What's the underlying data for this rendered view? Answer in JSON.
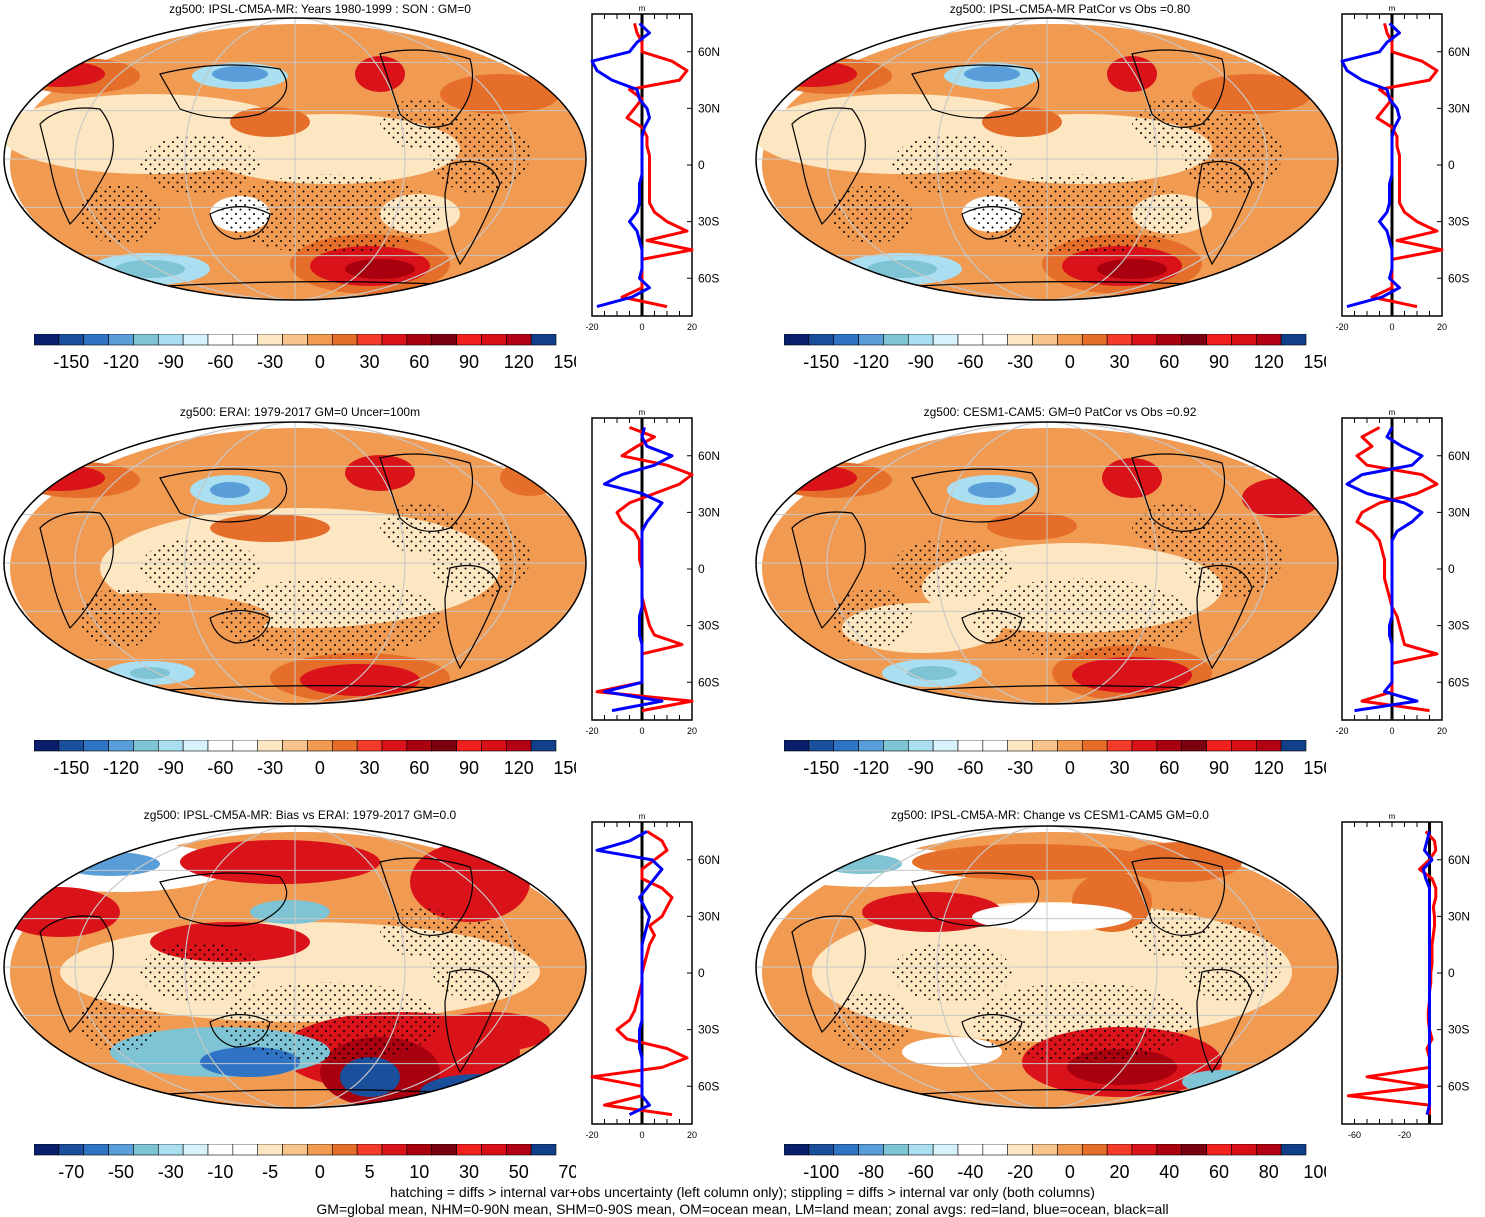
{
  "colors": {
    "land": "#ff0000",
    "ocean": "#0000ff",
    "all": "#000000",
    "palette": [
      "#0a1f6b",
      "#1a4f9c",
      "#2f74c4",
      "#5a9ed9",
      "#7fc4d4",
      "#a9dff0",
      "#d7f2fa",
      "#ffffff",
      "#ffffff",
      "#fde7c2",
      "#f8c48d",
      "#f09a52",
      "#e56f2a",
      "#f53b2a",
      "#d91319",
      "#a8000f",
      "#7a0010",
      "#f0211f",
      "#d80f17",
      "#b20015",
      "#123f8a"
    ]
  },
  "panels": [
    {
      "id": "ipsl-climatology",
      "title": "zg500: IPSL-CM5A-MR: Years 1980-1999 : SON : GM=0",
      "colorbar_labels": [
        "-150",
        "-120",
        "-90",
        "-60",
        "-30",
        "0",
        "30",
        "60",
        "90",
        "120",
        "150"
      ],
      "profile_lat_labels": [
        "60N",
        "30N",
        "0",
        "30S",
        "60S"
      ],
      "profile_x_labels": [
        "-20",
        "0",
        "20"
      ],
      "profile_unit": "m"
    },
    {
      "id": "ipsl-patcor",
      "title": "zg500: IPSL-CM5A-MR PatCor vs Obs =0.80",
      "colorbar_labels": [
        "-150",
        "-120",
        "-90",
        "-60",
        "-30",
        "0",
        "30",
        "60",
        "90",
        "120",
        "150"
      ],
      "profile_lat_labels": [
        "60N",
        "30N",
        "0",
        "30S",
        "60S"
      ],
      "profile_x_labels": [
        "-20",
        "0",
        "20"
      ],
      "profile_unit": "m"
    },
    {
      "id": "erai-obs",
      "title": "zg500: ERAI: 1979-2017 GM=0 Uncer=100m",
      "colorbar_labels": [
        "-150",
        "-120",
        "-90",
        "-60",
        "-30",
        "0",
        "30",
        "60",
        "90",
        "120",
        "150"
      ],
      "profile_lat_labels": [
        "60N",
        "30N",
        "0",
        "30S",
        "60S"
      ],
      "profile_x_labels": [
        "-20",
        "0",
        "20"
      ],
      "profile_unit": "m"
    },
    {
      "id": "cesm-patcor",
      "title": "zg500: CESM1-CAM5: GM=0 PatCor vs Obs =0.92",
      "colorbar_labels": [
        "-150",
        "-120",
        "-90",
        "-60",
        "-30",
        "0",
        "30",
        "60",
        "90",
        "120",
        "150"
      ],
      "profile_lat_labels": [
        "60N",
        "30N",
        "0",
        "30S",
        "60S"
      ],
      "profile_x_labels": [
        "-20",
        "0",
        "20"
      ],
      "profile_unit": "m"
    },
    {
      "id": "ipsl-bias",
      "title": "zg500: IPSL-CM5A-MR: Bias vs ERAI: 1979-2017  GM=0.0",
      "colorbar_labels": [
        "-70",
        "-50",
        "-30",
        "-10",
        "-5",
        "0",
        "5",
        "10",
        "30",
        "50",
        "70"
      ],
      "profile_lat_labels": [
        "60N",
        "30N",
        "0",
        "30S",
        "60S"
      ],
      "profile_x_labels": [
        "-20",
        "0",
        "20"
      ],
      "profile_unit": "m"
    },
    {
      "id": "ipsl-change",
      "title": "zg500: IPSL-CM5A-MR: Change vs CESM1-CAM5 GM=0.0",
      "colorbar_labels": [
        "-100",
        "-80",
        "-60",
        "-40",
        "-20",
        "0",
        "20",
        "40",
        "60",
        "80",
        "100"
      ],
      "profile_lat_labels": [
        "60N",
        "30N",
        "0",
        "30S",
        "60S"
      ],
      "profile_x_labels": [
        "-60",
        "-20"
      ],
      "profile_unit": "m"
    }
  ],
  "chart_data": [
    {
      "type": "line",
      "title": "zg500: IPSL-CM5A-MR: Years 1980-1999 : SON : GM=0",
      "description_axis": "zonal average vs latitude",
      "xlim": [
        -20,
        20
      ],
      "ylim": [
        -80,
        80
      ],
      "x_unit": "m",
      "series": [
        {
          "name": "red=land",
          "lat": [
            -75,
            -70,
            -65,
            -60,
            -55,
            -50,
            -45,
            -40,
            -35,
            -30,
            -25,
            -20,
            -15,
            -10,
            -5,
            0,
            5,
            10,
            15,
            20,
            25,
            30,
            35,
            40,
            45,
            50,
            55,
            60,
            65,
            70,
            75
          ],
          "values": [
            10,
            -8,
            0,
            0,
            0,
            0,
            20,
            2,
            18,
            10,
            5,
            3,
            3,
            3,
            3,
            3,
            3,
            2,
            2,
            0,
            -6,
            -3,
            0,
            -5,
            15,
            18,
            12,
            0,
            0,
            -2,
            -3
          ]
        },
        {
          "name": "blue=ocean",
          "lat": [
            -75,
            -70,
            -65,
            -60,
            -55,
            -50,
            -45,
            -40,
            -35,
            -30,
            -25,
            -20,
            -15,
            -10,
            -5,
            0,
            5,
            10,
            15,
            20,
            25,
            30,
            35,
            40,
            45,
            50,
            55,
            60,
            65,
            70,
            75
          ],
          "values": [
            -18,
            -4,
            3,
            -1,
            0,
            0,
            0,
            -1,
            -2,
            -5,
            -2,
            -1,
            -1,
            -1,
            0,
            0,
            0,
            0,
            0,
            1,
            3,
            2,
            -1,
            -2,
            -12,
            -18,
            -20,
            -5,
            -2,
            3,
            -1
          ]
        }
      ]
    },
    {
      "type": "line",
      "title": "zg500: IPSL-CM5A-MR PatCor vs Obs =0.80",
      "xlim": [
        -20,
        20
      ],
      "ylim": [
        -80,
        80
      ],
      "x_unit": "m",
      "series": [
        {
          "name": "red=land",
          "lat": [
            -75,
            -70,
            -65,
            -60,
            -55,
            -50,
            -45,
            -40,
            -35,
            -30,
            -25,
            -20,
            -15,
            -10,
            -5,
            0,
            5,
            10,
            15,
            20,
            25,
            30,
            35,
            40,
            45,
            50,
            55,
            60,
            65,
            70,
            75
          ],
          "values": [
            10,
            -8,
            0,
            0,
            0,
            0,
            20,
            2,
            18,
            10,
            5,
            3,
            3,
            3,
            3,
            3,
            3,
            2,
            2,
            0,
            -6,
            -3,
            0,
            -5,
            15,
            18,
            12,
            0,
            0,
            -2,
            -3
          ]
        },
        {
          "name": "blue=ocean",
          "lat": [
            -75,
            -70,
            -65,
            -60,
            -55,
            -50,
            -45,
            -40,
            -35,
            -30,
            -25,
            -20,
            -15,
            -10,
            -5,
            0,
            5,
            10,
            15,
            20,
            25,
            30,
            35,
            40,
            45,
            50,
            55,
            60,
            65,
            70,
            75
          ],
          "values": [
            -18,
            -4,
            3,
            -1,
            0,
            0,
            0,
            -1,
            -2,
            -5,
            -2,
            -1,
            -1,
            -1,
            0,
            0,
            0,
            0,
            0,
            1,
            3,
            2,
            -1,
            -2,
            -12,
            -18,
            -20,
            -5,
            -2,
            3,
            -1
          ]
        }
      ]
    },
    {
      "type": "line",
      "title": "zg500: ERAI: 1979-2017 GM=0 Uncer=100m",
      "xlim": [
        -20,
        20
      ],
      "ylim": [
        -80,
        80
      ],
      "x_unit": "m",
      "series": [
        {
          "name": "red=land",
          "lat": [
            -75,
            -70,
            -65,
            -60,
            -55,
            -50,
            -45,
            -40,
            -35,
            -30,
            -25,
            -20,
            -15,
            -10,
            -5,
            0,
            5,
            10,
            15,
            20,
            25,
            30,
            35,
            40,
            45,
            50,
            55,
            60,
            65,
            70,
            75
          ],
          "values": [
            0,
            20,
            -18,
            0,
            0,
            0,
            0,
            16,
            5,
            3,
            2,
            1,
            0,
            0,
            0,
            0,
            -1,
            -1,
            -1,
            -3,
            -8,
            -10,
            -5,
            5,
            15,
            20,
            10,
            -8,
            -2,
            5,
            -5
          ]
        },
        {
          "name": "blue=ocean",
          "lat": [
            -75,
            -70,
            -65,
            -60,
            -55,
            -50,
            -45,
            -40,
            -35,
            -30,
            -25,
            -20,
            -15,
            -10,
            -5,
            0,
            5,
            10,
            15,
            20,
            25,
            30,
            35,
            40,
            45,
            50,
            55,
            60,
            65,
            70,
            75
          ],
          "values": [
            -12,
            8,
            -15,
            0,
            0,
            0,
            0,
            0,
            -1,
            -1,
            -1,
            0,
            0,
            0,
            0,
            0,
            0,
            0,
            0,
            0,
            2,
            5,
            8,
            0,
            -15,
            -8,
            5,
            12,
            2,
            0,
            1
          ]
        }
      ]
    },
    {
      "type": "line",
      "title": "zg500: CESM1-CAM5: GM=0 PatCor vs Obs =0.92",
      "xlim": [
        -20,
        20
      ],
      "ylim": [
        -80,
        80
      ],
      "x_unit": "m",
      "series": [
        {
          "name": "red=land",
          "lat": [
            -75,
            -70,
            -65,
            -60,
            -55,
            -50,
            -45,
            -40,
            -35,
            -30,
            -25,
            -20,
            -15,
            -10,
            -5,
            0,
            5,
            10,
            15,
            20,
            25,
            30,
            35,
            40,
            45,
            50,
            55,
            60,
            65,
            70,
            75
          ],
          "values": [
            15,
            -12,
            0,
            0,
            0,
            0,
            18,
            5,
            4,
            3,
            2,
            0,
            -1,
            -2,
            -3,
            -3,
            -3,
            -4,
            -5,
            -8,
            -14,
            -12,
            -5,
            10,
            18,
            12,
            -10,
            -14,
            -8,
            -12,
            -5
          ]
        },
        {
          "name": "blue=ocean",
          "lat": [
            -75,
            -70,
            -65,
            -60,
            -55,
            -50,
            -45,
            -40,
            -35,
            -30,
            -25,
            -20,
            -15,
            -10,
            -5,
            0,
            5,
            10,
            15,
            20,
            25,
            30,
            35,
            40,
            45,
            50,
            55,
            60,
            65,
            70,
            75
          ],
          "values": [
            -15,
            10,
            -3,
            0,
            0,
            0,
            0,
            0,
            -1,
            -1,
            0,
            0,
            0,
            0,
            0,
            0,
            0,
            0,
            0,
            2,
            8,
            12,
            5,
            -10,
            -18,
            -12,
            8,
            12,
            4,
            -2,
            0
          ]
        }
      ]
    },
    {
      "type": "line",
      "title": "zg500: IPSL-CM5A-MR: Bias vs ERAI: 1979-2017  GM=0.0",
      "xlim": [
        -20,
        20
      ],
      "ylim": [
        -80,
        80
      ],
      "x_unit": "m",
      "series": [
        {
          "name": "red=land",
          "lat": [
            -75,
            -70,
            -65,
            -60,
            -55,
            -50,
            -45,
            -40,
            -35,
            -30,
            -25,
            -20,
            -15,
            -10,
            -5,
            0,
            5,
            10,
            15,
            20,
            25,
            30,
            35,
            40,
            45,
            50,
            55,
            60,
            65,
            70,
            75
          ],
          "values": [
            12,
            -15,
            0,
            0,
            -20,
            8,
            18,
            10,
            -6,
            -10,
            -5,
            -3,
            -2,
            -1,
            0,
            0,
            1,
            2,
            3,
            5,
            3,
            8,
            10,
            12,
            8,
            0,
            0,
            5,
            10,
            8,
            2
          ]
        },
        {
          "name": "blue=ocean",
          "lat": [
            -75,
            -70,
            -65,
            -60,
            -55,
            -50,
            -45,
            -40,
            -35,
            -30,
            -25,
            -20,
            -15,
            -10,
            -5,
            0,
            5,
            10,
            15,
            20,
            25,
            30,
            35,
            40,
            45,
            50,
            55,
            60,
            65,
            70,
            75
          ],
          "values": [
            -5,
            3,
            0,
            0,
            0,
            0,
            0,
            -1,
            -1,
            -1,
            0,
            0,
            0,
            0,
            0,
            0,
            0,
            0,
            0,
            1,
            2,
            3,
            1,
            -1,
            2,
            5,
            8,
            4,
            -18,
            -5,
            2
          ]
        }
      ]
    },
    {
      "type": "line",
      "title": "zg500: IPSL-CM5A-MR: Change vs CESM1-CAM5 GM=0.0",
      "xlim": [
        -70,
        10
      ],
      "ylim": [
        -80,
        80
      ],
      "x_unit": "m",
      "series": [
        {
          "name": "red=land",
          "lat": [
            -75,
            -70,
            -65,
            -60,
            -55,
            -50,
            -45,
            -40,
            -35,
            -30,
            -25,
            -20,
            -15,
            -10,
            -5,
            0,
            5,
            10,
            15,
            20,
            25,
            30,
            35,
            40,
            45,
            50,
            55,
            60,
            65,
            70,
            75
          ],
          "values": [
            0,
            0,
            -65,
            0,
            -50,
            0,
            0,
            -2,
            2,
            0,
            -1,
            -1,
            0,
            0,
            1,
            1,
            2,
            2,
            2,
            3,
            4,
            4,
            3,
            5,
            5,
            2,
            -8,
            0,
            5,
            4,
            -3
          ]
        },
        {
          "name": "blue=ocean",
          "lat": [
            -75,
            -70,
            -65,
            -60,
            -55,
            -50,
            -45,
            -40,
            -35,
            -30,
            -25,
            -20,
            -15,
            -10,
            -5,
            0,
            5,
            10,
            15,
            20,
            25,
            30,
            35,
            40,
            45,
            50,
            55,
            60,
            65,
            70,
            75
          ],
          "values": [
            -2,
            0,
            0,
            0,
            0,
            0,
            0,
            0,
            0,
            0,
            0,
            0,
            0,
            0,
            0,
            0,
            0,
            0,
            0,
            0,
            0,
            0,
            0,
            0,
            0,
            -3,
            -5,
            2,
            -4,
            -2,
            0
          ]
        }
      ]
    }
  ],
  "footer": {
    "line1": "hatching = diffs > internal var+obs uncertainty (left column only); stippling = diffs > internal var only (both columns)",
    "line2": "GM=global mean, NHM=0-90N mean, SHM=0-90S mean, OM=ocean mean, LM=land mean; zonal avgs: red=land, blue=ocean, black=all"
  }
}
